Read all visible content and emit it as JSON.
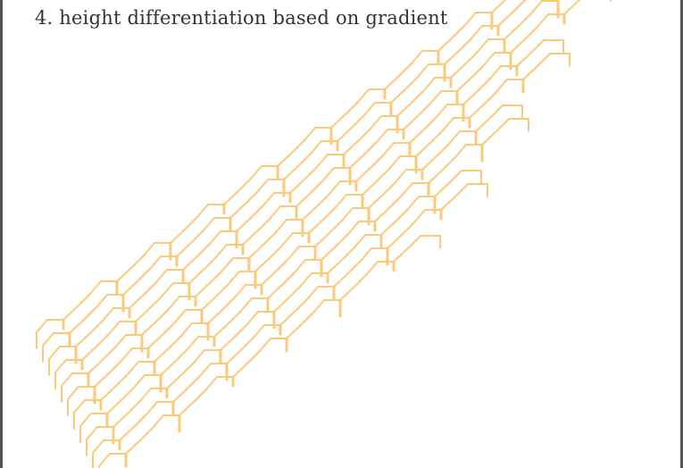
{
  "caption": "4. height differentiation based on gradient",
  "colors": {
    "stroke": "#fbc97a",
    "frame_border": "#555555",
    "caption_text": "#333333",
    "background": "#ffffff"
  }
}
